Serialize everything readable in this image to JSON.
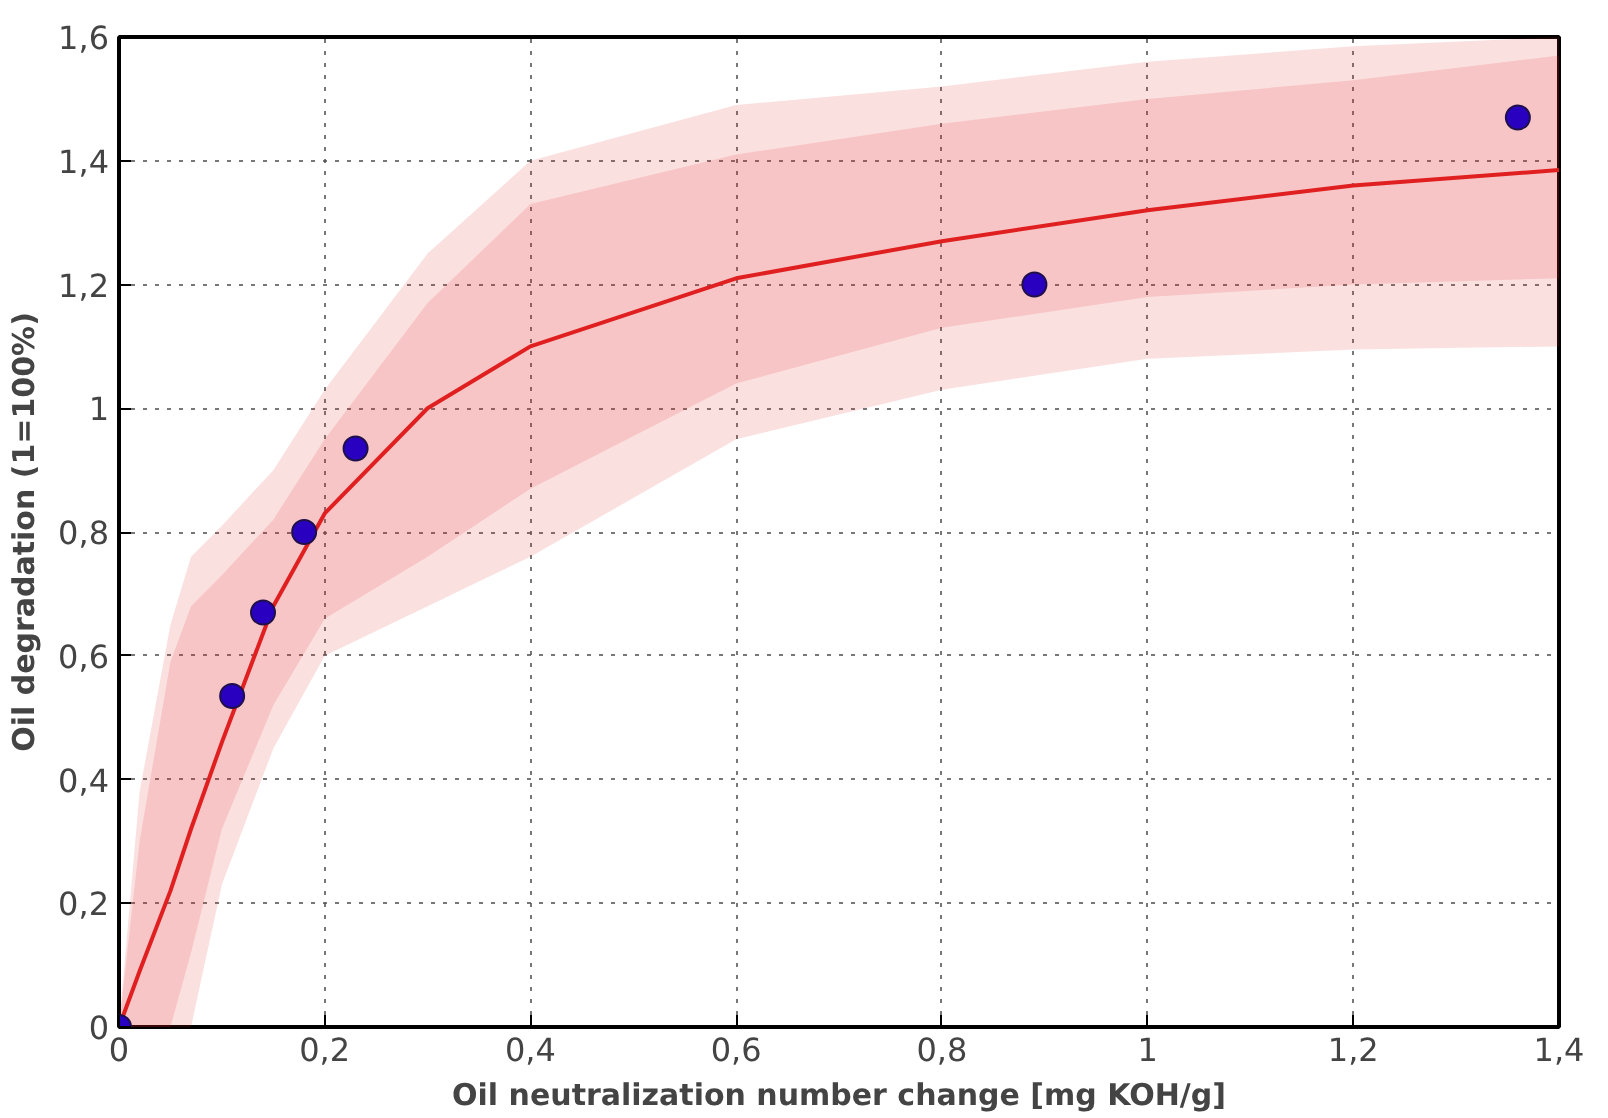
{
  "chart_data": {
    "type": "scatter",
    "xlabel": "Oil neutralization number change [mg KOH/g]",
    "ylabel": "Oil degradation (1=100%)",
    "xlim": [
      0,
      1.4
    ],
    "ylim": [
      0,
      1.6
    ],
    "xticks": [
      0,
      {
        "value": 0.2,
        "label": "0,2"
      },
      {
        "value": 0.4,
        "label": "0,4"
      },
      {
        "value": 0.6,
        "label": "0,6"
      },
      {
        "value": 0.8,
        "label": "0,8"
      },
      1,
      {
        "value": 1.2,
        "label": "1,2"
      },
      {
        "value": 1.4,
        "label": "1,4"
      }
    ],
    "yticks": [
      0,
      {
        "value": 0.2,
        "label": "0,2"
      },
      {
        "value": 0.4,
        "label": "0,4"
      },
      {
        "value": 0.6,
        "label": "0,6"
      },
      {
        "value": 0.8,
        "label": "0,8"
      },
      1,
      {
        "value": 1.2,
        "label": "1,2"
      },
      {
        "value": 1.4,
        "label": "1,4"
      },
      {
        "value": 1.6,
        "label": "1,6"
      }
    ],
    "grid": true,
    "series": [
      {
        "type": "line",
        "color": "#e02020",
        "line_style": "solid",
        "x": [
          0,
          0.02,
          0.05,
          0.07,
          0.1,
          0.15,
          0.2,
          0.3,
          0.4,
          0.6,
          0.8,
          1.0,
          1.2,
          1.4
        ],
        "values": [
          0,
          0.09,
          0.22,
          0.32,
          0.46,
          0.68,
          0.83,
          1.0,
          1.1,
          1.21,
          1.27,
          1.32,
          1.36,
          1.385
        ],
        "upper": [
          0,
          0.3,
          0.59,
          0.68,
          0.73,
          0.82,
          0.95,
          1.17,
          1.33,
          1.41,
          1.46,
          1.5,
          1.53,
          1.57
        ],
        "lower": [
          0,
          0,
          0,
          0.12,
          0.32,
          0.52,
          0.66,
          0.76,
          0.87,
          1.04,
          1.13,
          1.18,
          1.2,
          1.21
        ]
      },
      {
        "type": "line",
        "color": "#e02020",
        "x": [
          0,
          0.02,
          0.05,
          0.07,
          0.1,
          0.15,
          0.2,
          0.3,
          0.4,
          0.6,
          0.8,
          1.0,
          1.2,
          1.4
        ],
        "values": [
          null,
          null,
          null,
          null,
          null,
          null,
          null,
          null,
          null,
          null,
          null,
          null,
          null,
          null
        ],
        "upper": [
          0,
          0.38,
          0.65,
          0.76,
          0.81,
          0.9,
          1.03,
          1.25,
          1.4,
          1.49,
          1.52,
          1.56,
          1.585,
          1.6
        ],
        "lower": [
          0,
          0,
          0,
          0,
          0.23,
          0.45,
          0.6,
          0.68,
          0.76,
          0.95,
          1.03,
          1.08,
          1.095,
          1.1
        ]
      },
      {
        "color": "#2a00c0",
        "marker": "circle",
        "x": [
          0,
          0.11,
          0.14,
          0.18,
          0.23,
          0.89,
          1.36
        ],
        "values": [
          0,
          0.535,
          0.67,
          0.8,
          0.935,
          1.2,
          1.47
        ]
      }
    ]
  }
}
